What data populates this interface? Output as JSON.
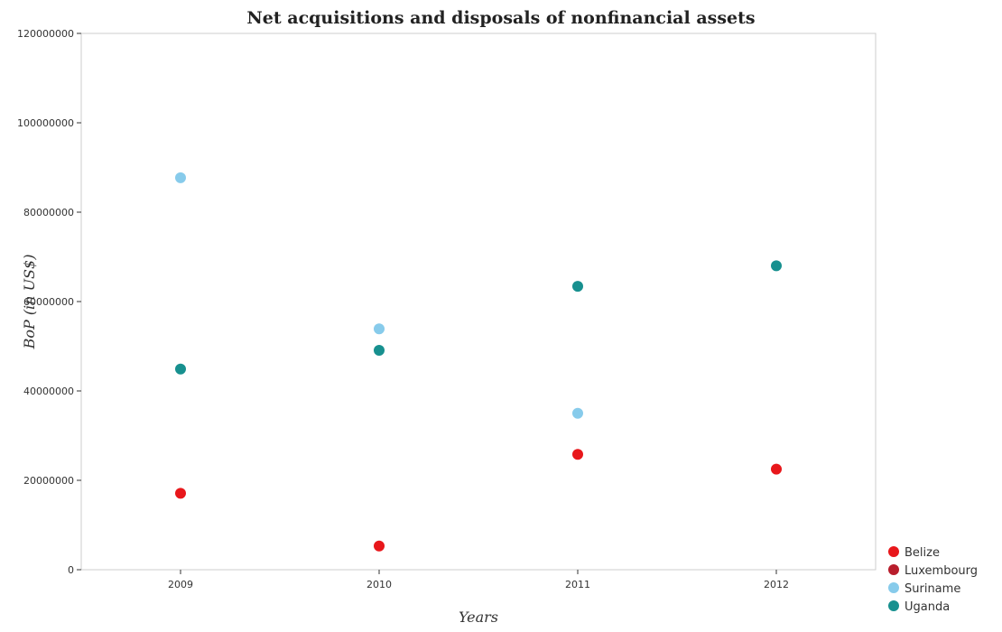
{
  "chart_data": {
    "type": "scatter",
    "title": "Net acquisitions and disposals of nonfinancial assets",
    "xlabel": "Years",
    "ylabel": "BoP (in US$)",
    "categories": [
      "2009",
      "2010",
      "2011",
      "2012"
    ],
    "ylim": [
      0,
      120000000
    ],
    "yticks": [
      0,
      20000000,
      40000000,
      60000000,
      80000000,
      100000000,
      120000000
    ],
    "ytick_labels": [
      "0",
      "20000000",
      "40000000",
      "60000000",
      "80000000",
      "100000000",
      "120000000"
    ],
    "grid": false,
    "legend_position": "bottom-right",
    "series": [
      {
        "name": "Belize",
        "color": "#e8171b",
        "values": [
          17100000,
          5300000,
          25800000,
          22500000
        ]
      },
      {
        "name": "Luxembourg",
        "color": "#b81d2c",
        "values": [
          null,
          null,
          null,
          null
        ]
      },
      {
        "name": "Suriname",
        "color": "#87cbeb",
        "values": [
          87700000,
          53900000,
          35000000,
          null
        ]
      },
      {
        "name": "Uganda",
        "color": "#17908f",
        "values": [
          44900000,
          49100000,
          63400000,
          68000000
        ]
      }
    ]
  }
}
